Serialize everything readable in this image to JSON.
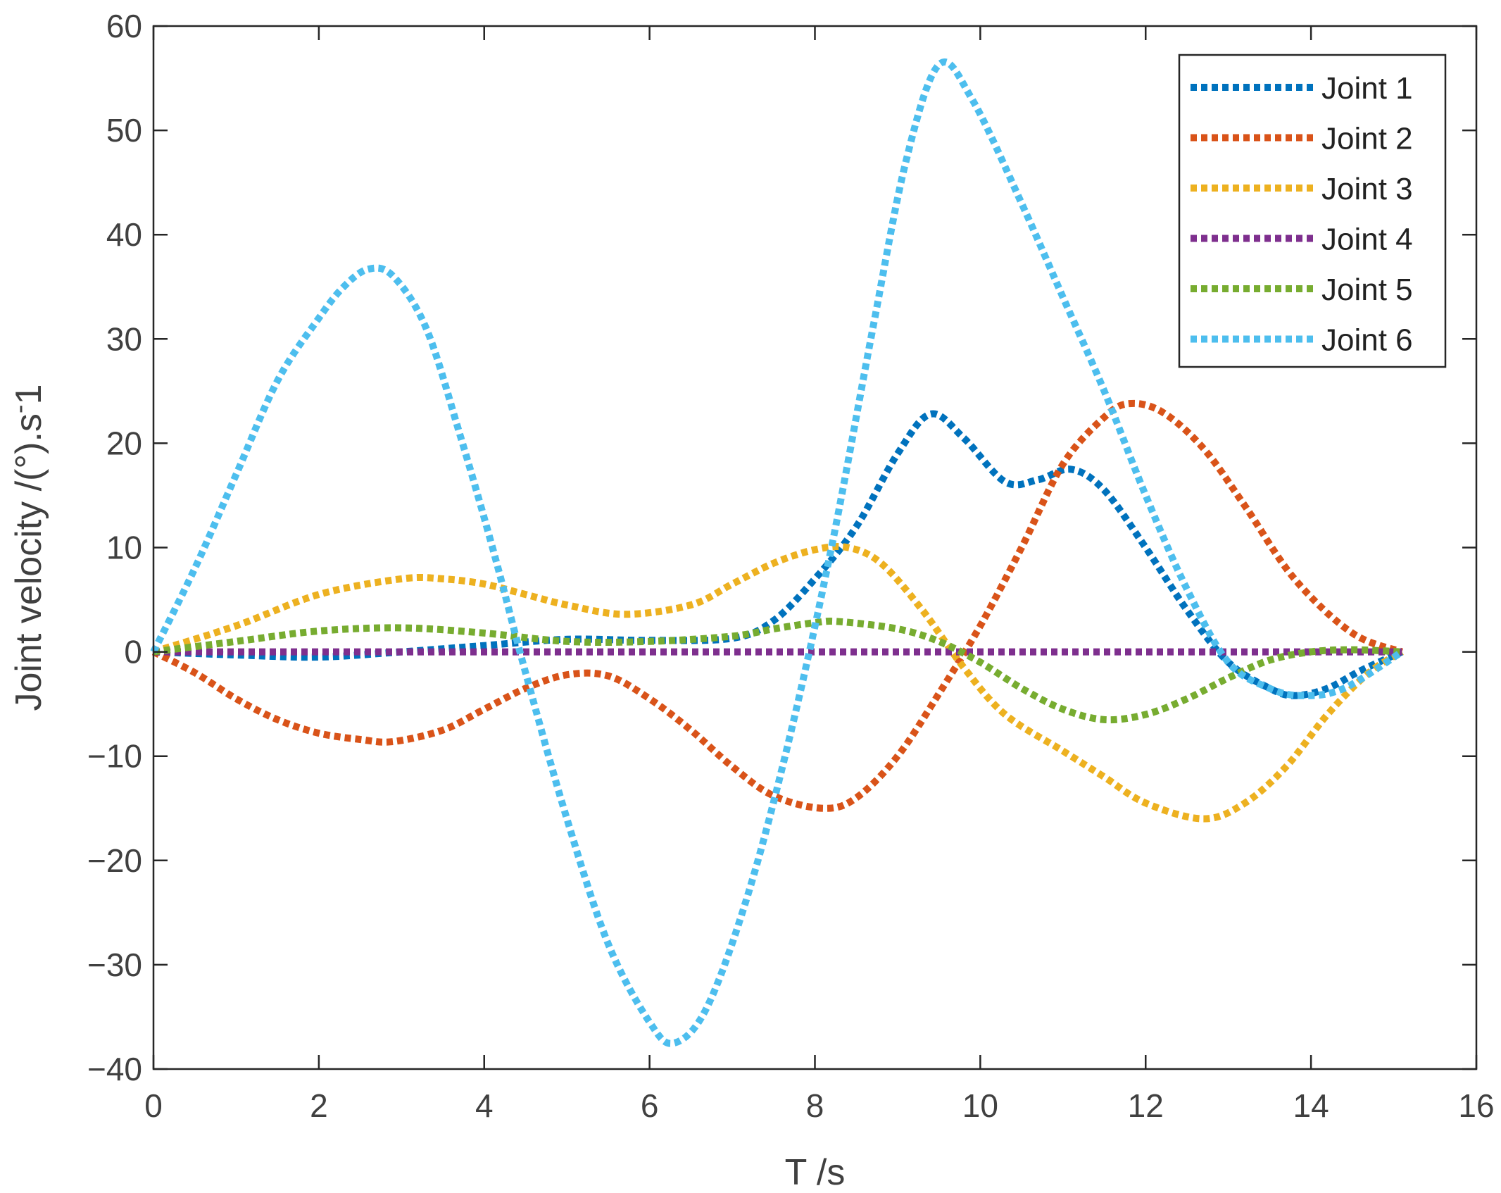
{
  "chart_data": {
    "type": "line",
    "title": "",
    "xlabel": "T /s",
    "ylabel": "Joint velocity /(°).s",
    "ylabel_superscript": "-",
    "ylabel_suffix": "1",
    "xlim": [
      0,
      16
    ],
    "ylim": [
      -40,
      60
    ],
    "xticks": [
      0,
      2,
      4,
      6,
      8,
      10,
      12,
      14,
      16
    ],
    "yticks": [
      -40,
      -30,
      -20,
      -10,
      0,
      10,
      20,
      30,
      40,
      50,
      60
    ],
    "xtick_labels": [
      "0",
      "2",
      "4",
      "6",
      "8",
      "10",
      "12",
      "14",
      "16"
    ],
    "ytick_labels": [
      "−40",
      "−30",
      "−20",
      "−10",
      "0",
      "10",
      "20",
      "30",
      "40",
      "50",
      "60"
    ],
    "grid": false,
    "box": true,
    "line_style": "dotted",
    "legend_position": "top-right",
    "series": [
      {
        "name": "Joint 1",
        "color": "#0072BD",
        "x": [
          0,
          1,
          2,
          3,
          4,
          5,
          6,
          7,
          7.5,
          8,
          8.5,
          9,
          9.4,
          9.8,
          10.3,
          10.7,
          11.1,
          11.5,
          12,
          12.5,
          13,
          13.5,
          13.8,
          14.2,
          14.6,
          15.1
        ],
        "y": [
          0,
          -0.3,
          -0.5,
          0,
          0.6,
          1.2,
          1.1,
          1.3,
          3,
          7,
          12,
          19,
          22.8,
          20.5,
          16.3,
          16.5,
          17.5,
          15.5,
          10,
          4,
          -1,
          -3.5,
          -4.2,
          -3.5,
          -1.8,
          0
        ]
      },
      {
        "name": "Joint 2",
        "color": "#D95319",
        "x": [
          0,
          0.5,
          1,
          1.5,
          2,
          2.5,
          2.9,
          3.5,
          4,
          4.5,
          5,
          5.5,
          6,
          6.5,
          7,
          7.5,
          8.1,
          8.5,
          9,
          9.5,
          10,
          10.5,
          11,
          11.5,
          11.8,
          12.2,
          12.7,
          13.2,
          13.8,
          14.5,
          15.1
        ],
        "y": [
          0,
          -2,
          -4.5,
          -6.5,
          -7.8,
          -8.4,
          -8.6,
          -7.5,
          -5.5,
          -3.5,
          -2.2,
          -2.3,
          -4.5,
          -7.5,
          -11,
          -13.8,
          -15,
          -14,
          -10,
          -4,
          2.5,
          10,
          18,
          22.5,
          23.8,
          23,
          19.5,
          14,
          7,
          1.8,
          0
        ]
      },
      {
        "name": "Joint 3",
        "color": "#EDB120",
        "x": [
          0,
          1,
          2,
          3,
          3.5,
          4,
          4.5,
          5,
          5.7,
          6.5,
          7,
          7.5,
          8,
          8.4,
          8.8,
          9.3,
          9.8,
          10.3,
          11,
          11.5,
          12,
          12.7,
          13.2,
          13.7,
          14.2,
          14.7,
          15.1
        ],
        "y": [
          0,
          2.5,
          5.5,
          7,
          7,
          6.5,
          5.5,
          4.5,
          3.6,
          4.5,
          6.5,
          8.5,
          9.8,
          10,
          8.5,
          4,
          -1.5,
          -6,
          -9.5,
          -12,
          -14.5,
          -16,
          -14.5,
          -11,
          -6,
          -2,
          0
        ]
      },
      {
        "name": "Joint 4",
        "color": "#7E2F8E",
        "x": [
          0,
          15.1
        ],
        "y": [
          0,
          0
        ]
      },
      {
        "name": "Joint 5",
        "color": "#77AC30",
        "x": [
          0,
          1,
          2,
          3,
          4,
          5,
          6,
          7,
          7.5,
          8,
          8.3,
          9,
          9.5,
          10,
          10.5,
          11,
          11.5,
          12,
          12.5,
          13,
          13.5,
          14,
          14.5,
          15.1
        ],
        "y": [
          0,
          1,
          2,
          2.3,
          1.8,
          1,
          1,
          1.5,
          2.2,
          2.8,
          2.9,
          2.2,
          1,
          -1,
          -3.5,
          -5.5,
          -6.5,
          -6,
          -4.5,
          -2.5,
          -0.8,
          0,
          0.2,
          0
        ]
      },
      {
        "name": "Joint 6",
        "color": "#4DBEEE",
        "x": [
          0,
          0.5,
          1,
          1.5,
          2,
          2.3,
          2.6,
          2.9,
          3.3,
          3.7,
          4.1,
          4.5,
          5,
          5.5,
          6,
          6.3,
          6.7,
          7.2,
          7.7,
          8.2,
          8.7,
          9.1,
          9.5,
          9.9,
          10.5,
          11,
          11.5,
          12,
          12.5,
          13,
          13.5,
          13.9,
          14.4,
          15.1
        ],
        "y": [
          0,
          8,
          17,
          26,
          32,
          35,
          36.7,
          36,
          31,
          21,
          10,
          -2,
          -16,
          -28,
          -35.5,
          -37.5,
          -34,
          -23,
          -8,
          10,
          31,
          47,
          56.3,
          53,
          43,
          34,
          25,
          15,
          6,
          -1,
          -3.5,
          -4.2,
          -3.5,
          0
        ]
      }
    ]
  }
}
